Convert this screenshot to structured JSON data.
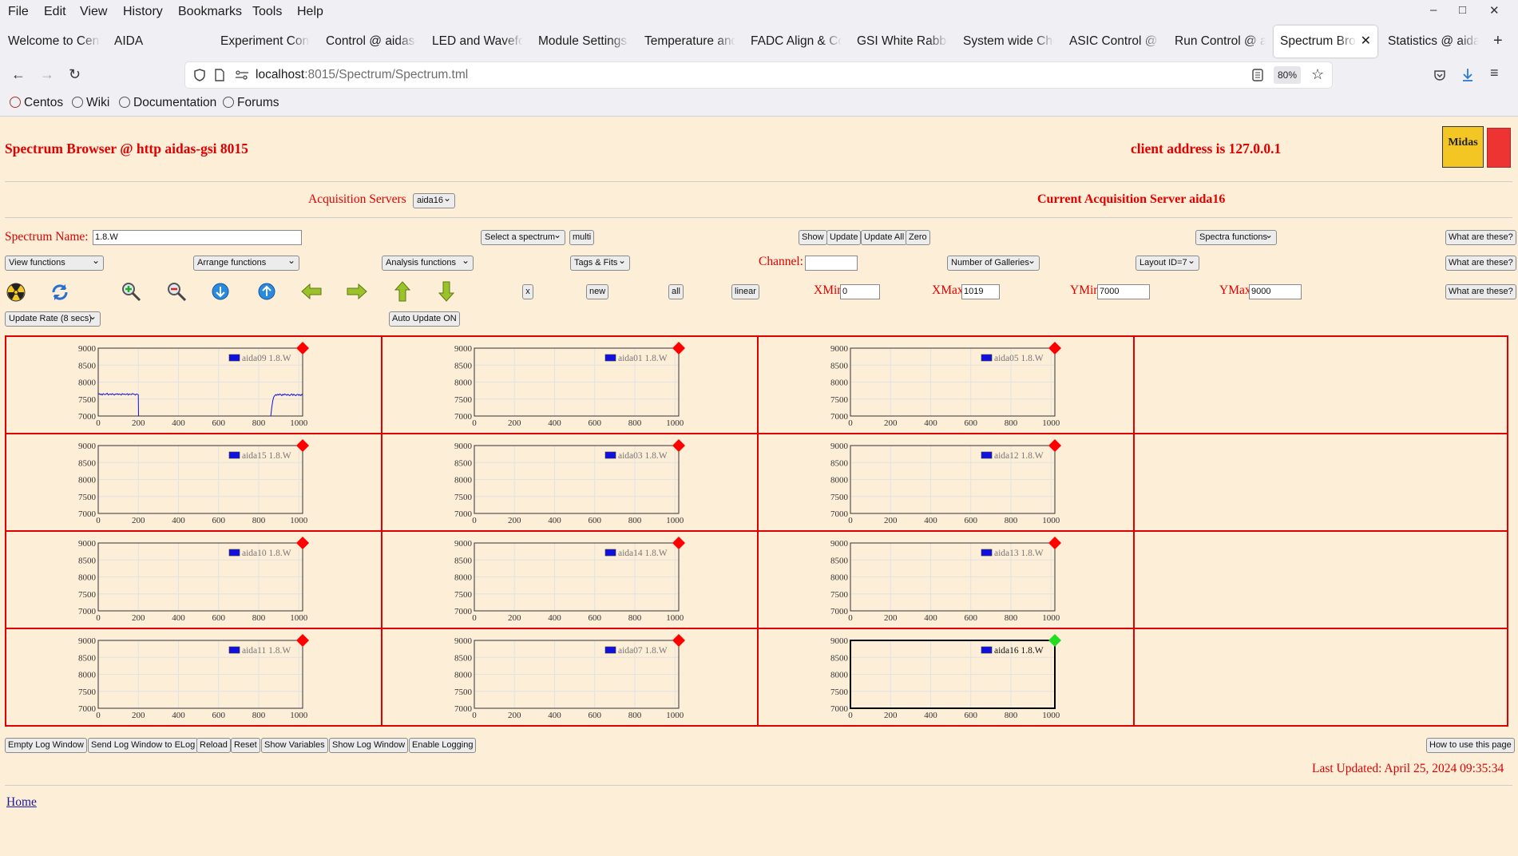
{
  "menu": [
    "File",
    "Edit",
    "View",
    "History",
    "Bookmarks",
    "Tools",
    "Help"
  ],
  "window_controls": {
    "minimize": "–",
    "maximize": "□",
    "close": "✕"
  },
  "tabs": [
    {
      "label": "Welcome to Centos"
    },
    {
      "label": "AIDA"
    },
    {
      "label": "Experiment Control"
    },
    {
      "label": "Control @ aidas-gsi"
    },
    {
      "label": "LED and Waveform"
    },
    {
      "label": "Module Settings @"
    },
    {
      "label": "Temperature and"
    },
    {
      "label": "FADC Align & Control"
    },
    {
      "label": "GSI White Rabbit"
    },
    {
      "label": "System wide Checks"
    },
    {
      "label": "ASIC Control @ aidas"
    },
    {
      "label": "Run Control @ aidas"
    },
    {
      "label": "Spectrum Browser"
    },
    {
      "label": "Statistics @ aidas"
    }
  ],
  "new_tab": "+",
  "url": {
    "host": "localhost",
    "rest": ":8015/Spectrum/Spectrum.tml"
  },
  "zoom": "80%",
  "bookmarks": [
    "Centos",
    "Wiki",
    "Documentation",
    "Forums"
  ],
  "page": {
    "title": "Spectrum Browser @ http aidas-gsi 8015",
    "client": "client address is 127.0.0.1",
    "acq_label": "Acquisition Servers",
    "acq_value": "aida16",
    "current_server": "Current Acquisition Server aida16",
    "spectrum_name_label": "Spectrum Name:",
    "spectrum_name_value": "1.8.W",
    "select_spectrum": "Select a spectrum",
    "multi": "multi",
    "show": "Show",
    "update": "Update",
    "update_all": "Update All",
    "zero": "Zero",
    "spectra_functions": "Spectra functions",
    "what_are_these": "What are these?",
    "view_functions": "View functions",
    "arrange_functions": "Arrange functions",
    "analysis_functions": "Analysis functions",
    "tags_fits": "Tags & Fits",
    "channel_label": "Channel:",
    "channel_value": "",
    "number_of_galleries": "Number of Galleries",
    "layout": "Layout ID=7",
    "x_btn": "x",
    "new_btn": "new",
    "all_btn": "all",
    "linear_btn": "linear",
    "xmin_label": "XMin",
    "xmin": "0",
    "xmax_label": "XMax",
    "xmax": "1019",
    "ymin_label": "YMin",
    "ymin": "7000",
    "ymax_label": "YMax",
    "ymax": "9000",
    "update_rate": "Update Rate (8 secs)",
    "auto_update": "Auto Update ON",
    "bottom_buttons": [
      "Empty Log Window",
      "Send Log Window to ELog",
      "Reload",
      "Reset",
      "Show Variables",
      "Show Log Window",
      "Enable Logging"
    ],
    "how_to": "How to use this page",
    "last_updated": "Last Updated: April 25, 2024 09:35:34",
    "home": "Home"
  },
  "icons": [
    "radiation-icon",
    "refresh-icon",
    "zoom-in-icon",
    "zoom-out-icon",
    "y-down-icon",
    "y-up-icon",
    "left-arrow-icon",
    "right-arrow-icon",
    "up-arrow-icon",
    "down-arrow-icon"
  ],
  "colors": {
    "accent": "#e00000",
    "background": "#fdeed8",
    "series": "#1010e0",
    "status_bad": "#ff0000",
    "status_ok": "#22dd22"
  },
  "chart_data": [
    {
      "type": "line",
      "series": [
        {
          "name": "aida09 1.8.W",
          "segments": [
            {
              "x": [
                0,
                5,
                10,
                15,
                20,
                25,
                30,
                35,
                40,
                45,
                50,
                55,
                60,
                65,
                70,
                75,
                80,
                85,
                90,
                95,
                100,
                105,
                110,
                115,
                120,
                125,
                130,
                135,
                140,
                145,
                150,
                155,
                160,
                165,
                170,
                175,
                180,
                185,
                190,
                195,
                200,
                201
              ],
              "y": [
                7640,
                7660,
                7630,
                7650,
                7620,
                7660,
                7640,
                7630,
                7650,
                7670,
                7620,
                7640,
                7650,
                7630,
                7660,
                7640,
                7620,
                7650,
                7640,
                7660,
                7630,
                7650,
                7640,
                7620,
                7660,
                7640,
                7650,
                7630,
                7640,
                7660,
                7620,
                7650,
                7640,
                7630,
                7660,
                7650,
                7640,
                7620,
                7650,
                7640,
                7630,
                7000
              ]
            },
            {
              "x": [
                860,
                865,
                870,
                875,
                880,
                885,
                890,
                895,
                900,
                905,
                910,
                915,
                920,
                925,
                930,
                935,
                940,
                945,
                950,
                955,
                960,
                965,
                970,
                975,
                980,
                985,
                990,
                995,
                1000,
                1005,
                1010,
                1015,
                1019
              ],
              "y": [
                7000,
                7250,
                7450,
                7560,
                7600,
                7630,
                7610,
                7640,
                7620,
                7650,
                7630,
                7600,
                7640,
                7620,
                7650,
                7630,
                7610,
                7640,
                7620,
                7600,
                7630,
                7650,
                7610,
                7640,
                7620,
                7600,
                7630,
                7640,
                7610,
                7630,
                7600,
                7640,
                7620
              ]
            }
          ]
        }
      ],
      "xlim": [
        0,
        1019
      ],
      "ylim": [
        7000,
        9000
      ],
      "xticks": [
        0,
        200,
        400,
        600,
        800,
        1000
      ],
      "yticks": [
        7000,
        7500,
        8000,
        8500,
        9000
      ],
      "status": "bad"
    },
    {
      "type": "line",
      "series": [
        {
          "name": "aida01 1.8.W"
        }
      ],
      "xlim": [
        0,
        1019
      ],
      "ylim": [
        7000,
        9000
      ],
      "status": "bad"
    },
    {
      "type": "line",
      "series": [
        {
          "name": "aida05 1.8.W"
        }
      ],
      "xlim": [
        0,
        1019
      ],
      "ylim": [
        7000,
        9000
      ],
      "status": "bad"
    },
    {
      "type": "line",
      "series": [
        {
          "name": "aida15 1.8.W"
        }
      ],
      "xlim": [
        0,
        1019
      ],
      "ylim": [
        7000,
        9000
      ],
      "status": "bad"
    },
    {
      "type": "line",
      "series": [
        {
          "name": "aida03 1.8.W"
        }
      ],
      "xlim": [
        0,
        1019
      ],
      "ylim": [
        7000,
        9000
      ],
      "status": "bad"
    },
    {
      "type": "line",
      "series": [
        {
          "name": "aida12 1.8.W"
        }
      ],
      "xlim": [
        0,
        1019
      ],
      "ylim": [
        7000,
        9000
      ],
      "status": "bad"
    },
    {
      "type": "line",
      "series": [
        {
          "name": "aida10 1.8.W"
        }
      ],
      "xlim": [
        0,
        1019
      ],
      "ylim": [
        7000,
        9000
      ],
      "status": "bad"
    },
    {
      "type": "line",
      "series": [
        {
          "name": "aida14 1.8.W"
        }
      ],
      "xlim": [
        0,
        1019
      ],
      "ylim": [
        7000,
        9000
      ],
      "status": "bad"
    },
    {
      "type": "line",
      "series": [
        {
          "name": "aida13 1.8.W"
        }
      ],
      "xlim": [
        0,
        1019
      ],
      "ylim": [
        7000,
        9000
      ],
      "status": "bad"
    },
    {
      "type": "line",
      "series": [
        {
          "name": "aida11 1.8.W"
        }
      ],
      "xlim": [
        0,
        1019
      ],
      "ylim": [
        7000,
        9000
      ],
      "status": "bad"
    },
    {
      "type": "line",
      "series": [
        {
          "name": "aida07 1.8.W"
        }
      ],
      "xlim": [
        0,
        1019
      ],
      "ylim": [
        7000,
        9000
      ],
      "status": "bad"
    },
    {
      "type": "line",
      "series": [
        {
          "name": "aida16 1.8.W"
        }
      ],
      "xlim": [
        0,
        1019
      ],
      "ylim": [
        7000,
        9000
      ],
      "status": "ok",
      "selected": true
    }
  ]
}
